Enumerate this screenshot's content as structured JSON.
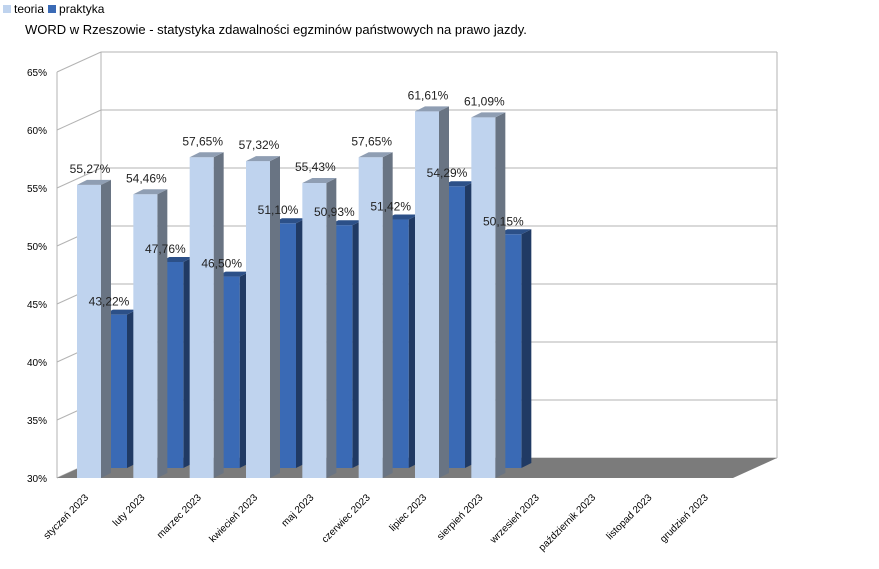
{
  "title": "WORD w Rzeszowie - statystyka zdawalności egzminów państwowych na prawo jazdy.",
  "legend": [
    {
      "name": "teoria",
      "color": "#bfd3ee"
    },
    {
      "name": "praktyka",
      "color": "#3a6ab5"
    }
  ],
  "chart_data": {
    "type": "bar",
    "title": "WORD w Rzeszowie - statystyka zdawalności egzminów państwowych na prawo jazdy.",
    "categories": [
      "styczeń 2023",
      "luty 2023",
      "marzec 2023",
      "kwiecień 2023",
      "maj 2023",
      "czerwiec 2023",
      "lipiec 2023",
      "sierpień 2023",
      "wrzesień 2023",
      "październik 2023",
      "listopad 2023",
      "grudzień 2023"
    ],
    "series": [
      {
        "name": "teoria",
        "color": "#bfd3ee",
        "values": [
          55.27,
          54.46,
          57.65,
          57.32,
          55.43,
          57.65,
          61.61,
          61.09,
          null,
          null,
          null,
          null
        ],
        "labels": [
          "55,27%",
          "54,46%",
          "57,65%",
          "57,32%",
          "55,43%",
          "57,65%",
          "61,61%",
          "61,09%",
          "",
          "",
          "",
          ""
        ]
      },
      {
        "name": "praktyka",
        "color": "#3a6ab5",
        "values": [
          43.22,
          47.76,
          46.5,
          51.1,
          50.93,
          51.42,
          54.29,
          50.15,
          null,
          null,
          null,
          null
        ],
        "labels": [
          "43,22%",
          "47,76%",
          "46,50%",
          "51,10%",
          "50,93%",
          "51,42%",
          "54,29%",
          "50,15%",
          "",
          "",
          "",
          ""
        ]
      }
    ],
    "ylim": [
      30,
      65
    ],
    "yticks": [
      30,
      35,
      40,
      45,
      50,
      55,
      60,
      65
    ],
    "ytick_labels": [
      "30%",
      "35%",
      "40%",
      "45%",
      "50%",
      "55%",
      "60%",
      "65%"
    ],
    "xlabel": "",
    "ylabel": "",
    "grid": true,
    "legend_position": "top-left",
    "three_d": true
  }
}
